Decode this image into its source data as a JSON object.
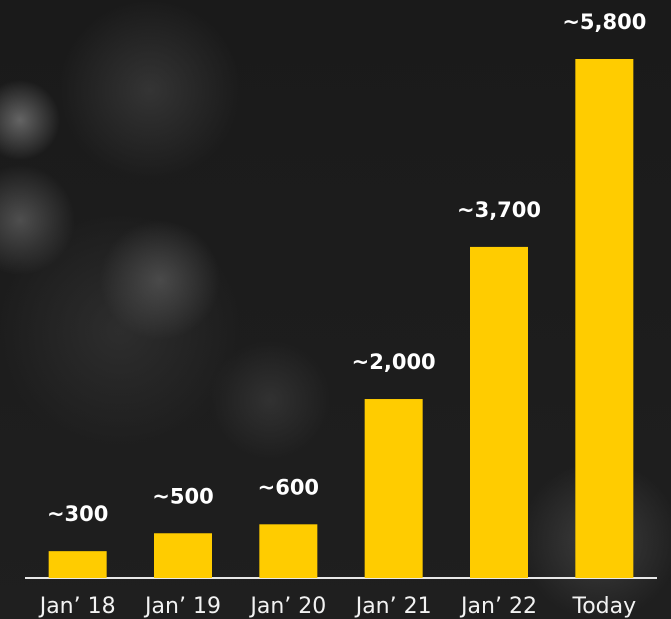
{
  "chart_data": {
    "type": "bar",
    "categories": [
      "Jan’ 18",
      "Jan’ 19",
      "Jan’ 20",
      "Jan’ 21",
      "Jan’ 22",
      "Today"
    ],
    "values": [
      300,
      500,
      600,
      2000,
      3700,
      5800
    ],
    "value_labels": [
      "~300",
      "~500",
      "~600",
      "~2,000",
      "~3,700",
      "~5,800"
    ],
    "color": "#ffcc00"
  }
}
